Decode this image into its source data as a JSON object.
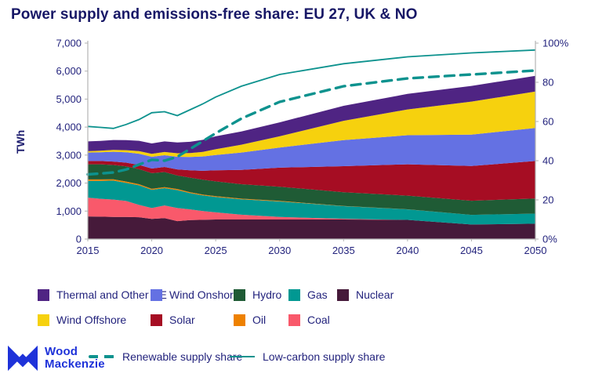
{
  "title": "Power supply and emissions-free share: EU 27, UK & NO",
  "colors": {
    "background": "#FFFFFF",
    "text_navy": "#23237d",
    "title_navy": "#171766",
    "axis_grey": "#b3b3b3",
    "line_teal": "#0D928E",
    "logo_blue": "#1E32D9"
  },
  "y_axis": {
    "label": "TWh",
    "ticks": [
      {
        "v": 0,
        "label": "0"
      },
      {
        "v": 1000,
        "label": "1,000"
      },
      {
        "v": 2000,
        "label": "2,000"
      },
      {
        "v": 3000,
        "label": "3,000"
      },
      {
        "v": 4000,
        "label": "4,000"
      },
      {
        "v": 5000,
        "label": "5,000"
      },
      {
        "v": 6000,
        "label": "6,000"
      },
      {
        "v": 7000,
        "label": "7,000"
      }
    ]
  },
  "y_axis_right": {
    "ticks": [
      {
        "v": 0,
        "label": "0%"
      },
      {
        "v": 20,
        "label": "20"
      },
      {
        "v": 40,
        "label": "40"
      },
      {
        "v": 60,
        "label": "60"
      },
      {
        "v": 80,
        "label": "80"
      },
      {
        "v": 100,
        "label": "100%"
      }
    ]
  },
  "chart_data": {
    "type": "area",
    "stacked": true,
    "title": "Power supply and emissions-free share: EU 27, UK & NO",
    "ylabel": "TWh",
    "ylim_left": [
      0,
      7000
    ],
    "ylim_right": [
      0,
      100
    ],
    "grid": false,
    "x": [
      2015,
      2016,
      2017,
      2018,
      2019,
      2020,
      2021,
      2022,
      2023,
      2024,
      2025,
      2027,
      2030,
      2035,
      2040,
      2045,
      2050
    ],
    "x_ticks": [
      {
        "v": 2015,
        "label": "2015"
      },
      {
        "v": 2020,
        "label": "2020"
      },
      {
        "v": 2025,
        "label": "2025"
      },
      {
        "v": 2030,
        "label": "2030"
      },
      {
        "v": 2035,
        "label": "2035"
      },
      {
        "v": 2040,
        "label": "2040"
      },
      {
        "v": 2045,
        "label": "2045"
      },
      {
        "v": 2050,
        "label": "2050"
      }
    ],
    "unit": "TWh",
    "series": [
      {
        "key": "nuclear",
        "name": "Nuclear",
        "color": "#461A3A",
        "values": [
          810,
          800,
          790,
          790,
          780,
          720,
          750,
          640,
          680,
          690,
          700,
          700,
          700,
          700,
          685,
          520,
          550
        ]
      },
      {
        "key": "coal",
        "name": "Coal",
        "color": "#F9596B",
        "values": [
          670,
          640,
          620,
          570,
          440,
          390,
          450,
          470,
          380,
          310,
          255,
          170,
          90,
          25,
          0,
          0,
          0
        ]
      },
      {
        "key": "gas",
        "name": "Gas",
        "color": "#019892",
        "values": [
          600,
          640,
          680,
          650,
          700,
          650,
          620,
          640,
          580,
          560,
          550,
          550,
          555,
          450,
          375,
          345,
          360
        ]
      },
      {
        "key": "oil",
        "name": "Oil",
        "color": "#EE8100",
        "values": [
          50,
          50,
          45,
          45,
          40,
          35,
          35,
          40,
          35,
          30,
          30,
          25,
          20,
          10,
          5,
          0,
          0
        ]
      },
      {
        "key": "hydro",
        "name": "Hydro",
        "color": "#1F5B35",
        "values": [
          540,
          540,
          510,
          540,
          540,
          560,
          540,
          480,
          520,
          530,
          525,
          515,
          505,
          490,
          485,
          505,
          540
        ]
      },
      {
        "key": "solar",
        "name": "Solar",
        "color": "#A60D23",
        "values": [
          120,
          120,
          125,
          135,
          150,
          165,
          180,
          220,
          260,
          320,
          395,
          510,
          680,
          930,
          1120,
          1240,
          1340
        ]
      },
      {
        "key": "wind_onshore",
        "name": "Wind Onshore",
        "color": "#6471E3",
        "values": [
          300,
          310,
          350,
          370,
          400,
          420,
          420,
          450,
          480,
          510,
          550,
          620,
          720,
          930,
          1040,
          1120,
          1180
        ]
      },
      {
        "key": "wind_offshore",
        "name": "Wind Offshore",
        "color": "#F6D10E",
        "values": [
          50,
          55,
          65,
          75,
          95,
          105,
          115,
          125,
          140,
          165,
          205,
          280,
          400,
          690,
          920,
          1180,
          1300
        ]
      },
      {
        "key": "thermal_other_re",
        "name": "Thermal and Other RE",
        "color": "#4F2483",
        "values": [
          350,
          350,
          355,
          360,
          365,
          370,
          380,
          385,
          400,
          430,
          460,
          475,
          500,
          535,
          555,
          560,
          560
        ]
      }
    ],
    "line_series": [
      {
        "key": "renewable_share",
        "name": "Renewable supply share",
        "style": "dashed",
        "axis": "right",
        "unit": "%",
        "color": "#0D928E",
        "values": [
          33,
          33.5,
          34,
          35.5,
          38,
          40.5,
          40,
          42,
          46,
          50,
          54,
          61.5,
          70,
          78,
          82,
          84,
          86
        ]
      },
      {
        "key": "low_carbon_share",
        "name": "Low-carbon supply share",
        "style": "solid",
        "axis": "right",
        "unit": "%",
        "color": "#0D928E",
        "values": [
          57.5,
          57,
          56.5,
          58.5,
          61,
          64.5,
          65,
          63,
          66,
          69,
          72.5,
          78,
          84,
          89.5,
          93,
          95,
          96.5
        ]
      }
    ]
  },
  "legend": {
    "rows": [
      [
        "thermal_other_re",
        "wind_onshore",
        "hydro",
        "gas",
        "nuclear"
      ],
      [
        "wind_offshore",
        "solar",
        "oil",
        "coal"
      ]
    ]
  },
  "logo": {
    "line1": "Wood",
    "line2": "Mackenzie"
  }
}
